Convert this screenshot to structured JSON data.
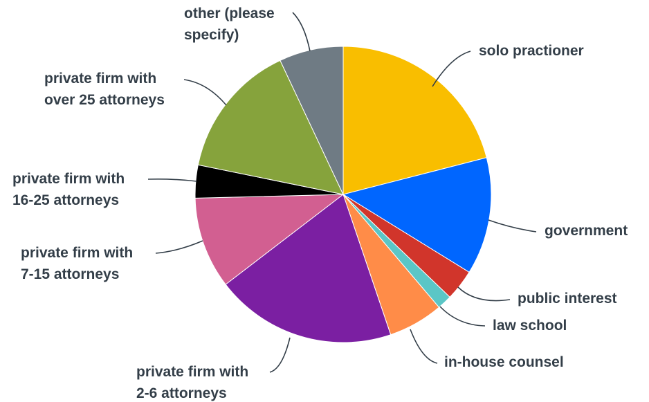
{
  "chart_data": {
    "type": "pie",
    "title": "",
    "slices": [
      {
        "label": "solo practioner",
        "value": 21.0,
        "color": "#f9be00"
      },
      {
        "label": "government",
        "value": 12.8,
        "color": "#0066ff"
      },
      {
        "label": "public interest",
        "value": 3.4,
        "color": "#d1352b"
      },
      {
        "label": "law school",
        "value": 1.6,
        "color": "#5bc6c6"
      },
      {
        "label": "in-house counsel",
        "value": 6.0,
        "color": "#ff8c48"
      },
      {
        "label": "private firm with 2-6 attorneys",
        "value": 19.8,
        "color": "#7b1fa2"
      },
      {
        "label": "private firm with 7-15 attorneys",
        "value": 10.0,
        "color": "#d25f91"
      },
      {
        "label": "private firm with 16-25 attorneys",
        "value": 3.6,
        "color": "#000000"
      },
      {
        "label": "private firm with over 25 attorneys",
        "value": 14.8,
        "color": "#86a33c"
      },
      {
        "label": "other (please specify)",
        "value": 7.0,
        "color": "#6f7b84"
      }
    ]
  }
}
